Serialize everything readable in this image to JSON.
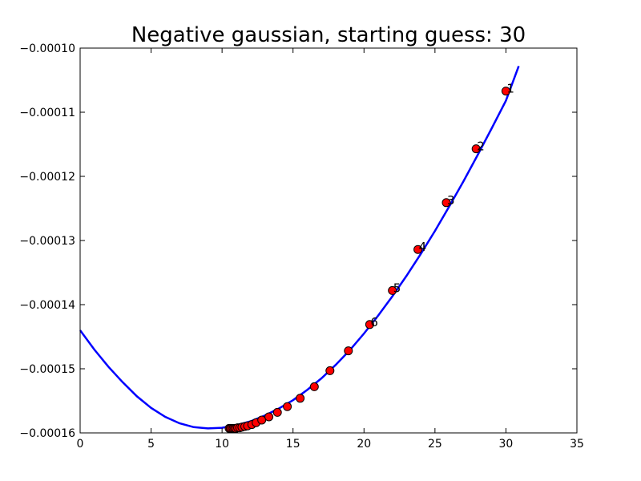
{
  "chart_data": {
    "type": "line",
    "title": "Negative gaussian, starting guess: 30",
    "xlabel": "",
    "ylabel": "",
    "xlim": [
      0,
      35
    ],
    "ylim": [
      -0.00016,
      -0.0001
    ],
    "x_ticks": [
      "0",
      "5",
      "10",
      "15",
      "20",
      "25",
      "30",
      "35"
    ],
    "x_tick_values": [
      0,
      5,
      10,
      15,
      20,
      25,
      30,
      35
    ],
    "y_ticks": [
      "−0.00010",
      "−0.00011",
      "−0.00012",
      "−0.00013",
      "−0.00014",
      "−0.00015",
      "−0.00016"
    ],
    "y_tick_values": [
      -0.0001,
      -0.00011,
      -0.00012,
      -0.00013,
      -0.00014,
      -0.00015,
      -0.00016
    ],
    "grid": false,
    "colors": {
      "curve": "#0000ff",
      "point_fill": "#ff0000",
      "point_edge": "#000000"
    },
    "series": [
      {
        "type": "line",
        "x": [
          0,
          1,
          2,
          3,
          4,
          5,
          6,
          7,
          8,
          9,
          10,
          11,
          12,
          13,
          14,
          15,
          16,
          17,
          18,
          19,
          20,
          21,
          22,
          23,
          24,
          25,
          26,
          27,
          28,
          29,
          30,
          30.9
        ],
        "y": [
          -0.000144,
          -0.000147,
          -0.0001497,
          -0.0001521,
          -0.0001543,
          -0.0001561,
          -0.0001575,
          -0.0001585,
          -0.0001591,
          -0.0001593,
          -0.0001592,
          -0.0001588,
          -0.0001582,
          -0.0001573,
          -0.0001562,
          -0.0001549,
          -0.0001533,
          -0.0001515,
          -0.0001494,
          -0.0001471,
          -0.0001445,
          -0.0001417,
          -0.0001387,
          -0.0001355,
          -0.0001321,
          -0.0001285,
          -0.0001247,
          -0.0001208,
          -0.0001167,
          -0.0001125,
          -0.0001082,
          -0.0001028
        ]
      },
      {
        "type": "scatter",
        "x": [
          30.0,
          27.9,
          25.8,
          23.8,
          22.0,
          20.4,
          18.9,
          17.6,
          16.5,
          15.5,
          14.6,
          13.9,
          13.3,
          12.8,
          12.4,
          12.1,
          11.8,
          11.6,
          11.4,
          11.25,
          11.1,
          10.98,
          10.88,
          10.78,
          10.68,
          10.58,
          10.5
        ],
        "y": [
          -0.0001067,
          -0.0001157,
          -0.0001241,
          -0.0001314,
          -0.0001378,
          -0.0001431,
          -0.0001472,
          -0.0001503,
          -0.0001528,
          -0.0001546,
          -0.0001559,
          -0.0001568,
          -0.0001575,
          -0.000158,
          -0.0001584,
          -0.0001587,
          -0.0001589,
          -0.000159,
          -0.0001591,
          -0.0001592,
          -0.0001592,
          -0.0001593,
          -0.0001593,
          -0.0001593,
          -0.0001593,
          -0.0001593,
          -0.0001593
        ]
      }
    ],
    "annotations": [
      {
        "text": "1",
        "x": 30.0,
        "y": -0.0001067
      },
      {
        "text": "2",
        "x": 27.9,
        "y": -0.0001157
      },
      {
        "text": "3",
        "x": 25.8,
        "y": -0.0001241
      },
      {
        "text": "4",
        "x": 23.8,
        "y": -0.0001314
      },
      {
        "text": "5",
        "x": 22.0,
        "y": -0.0001378
      },
      {
        "text": "6",
        "x": 20.4,
        "y": -0.0001431
      }
    ]
  }
}
